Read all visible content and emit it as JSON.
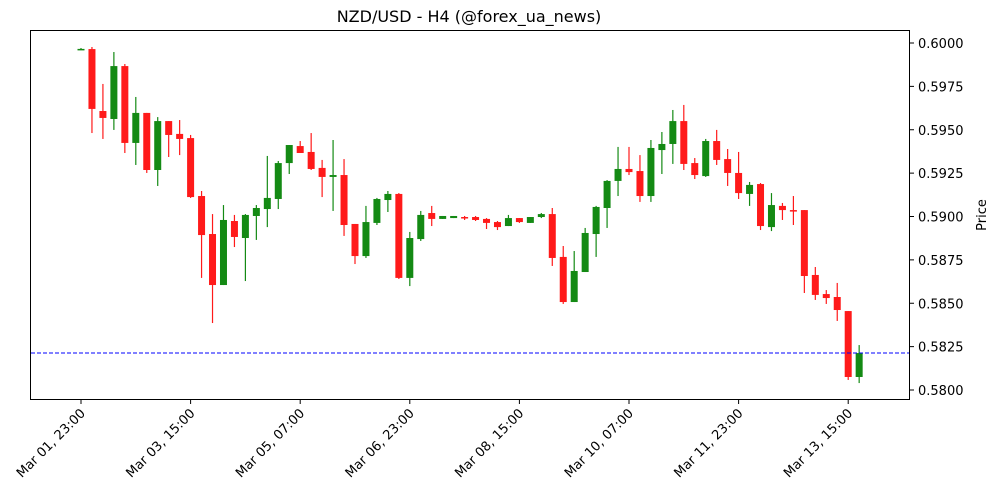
{
  "chart_data": {
    "type": "candlestick",
    "title": "NZD/USD - H4 (@forex_ua_news)",
    "xlabel": "",
    "ylabel": "Price",
    "ylim": [
      0.57937,
      0.60069
    ],
    "y_ticks": [
      "0.6000",
      "0.5975",
      "0.5950",
      "0.5925",
      "0.5900",
      "0.5875",
      "0.5850",
      "0.5825",
      "0.5800"
    ],
    "y_tick_values": [
      0.6,
      0.5975,
      0.595,
      0.5925,
      0.59,
      0.5875,
      0.585,
      0.5825,
      0.58
    ],
    "x_ticks": [
      "Mar 01, 23:00",
      "Mar 03, 15:00",
      "Mar 05, 07:00",
      "Mar 06, 23:00",
      "Mar 08, 15:00",
      "Mar 10, 07:00",
      "Mar 11, 23:00",
      "Mar 13, 15:00"
    ],
    "x_tick_indices": [
      0,
      10,
      20,
      30,
      40,
      50,
      60,
      70
    ],
    "grid": false,
    "reference_line": {
      "value": 0.58213,
      "color": "#0000ff",
      "style": "dashed"
    },
    "colors": {
      "up": "#148a14",
      "down": "#ff1a1a"
    },
    "candles": [
      {
        "o": 0.59965,
        "h": 0.59971,
        "l": 0.59965,
        "c": 0.59966
      },
      {
        "o": 0.59965,
        "h": 0.59977,
        "l": 0.59481,
        "c": 0.5962
      },
      {
        "o": 0.59608,
        "h": 0.59764,
        "l": 0.59447,
        "c": 0.59568
      },
      {
        "o": 0.59562,
        "h": 0.59948,
        "l": 0.59499,
        "c": 0.59867
      },
      {
        "o": 0.59867,
        "h": 0.59879,
        "l": 0.59366,
        "c": 0.59424
      },
      {
        "o": 0.59424,
        "h": 0.59689,
        "l": 0.59297,
        "c": 0.59597
      },
      {
        "o": 0.59597,
        "h": 0.59597,
        "l": 0.59251,
        "c": 0.59268
      },
      {
        "o": 0.59268,
        "h": 0.59573,
        "l": 0.59176,
        "c": 0.5955
      },
      {
        "o": 0.5955,
        "h": 0.5955,
        "l": 0.59343,
        "c": 0.5947
      },
      {
        "o": 0.59476,
        "h": 0.59556,
        "l": 0.59354,
        "c": 0.59447
      },
      {
        "o": 0.59452,
        "h": 0.5947,
        "l": 0.59107,
        "c": 0.59112
      },
      {
        "o": 0.59118,
        "h": 0.59147,
        "l": 0.58646,
        "c": 0.58893
      },
      {
        "o": 0.58899,
        "h": 0.59014,
        "l": 0.58386,
        "c": 0.58605
      },
      {
        "o": 0.58605,
        "h": 0.59066,
        "l": 0.58605,
        "c": 0.5898
      },
      {
        "o": 0.58974,
        "h": 0.59009,
        "l": 0.58824,
        "c": 0.58882
      },
      {
        "o": 0.58876,
        "h": 0.59014,
        "l": 0.58628,
        "c": 0.59009
      },
      {
        "o": 0.59003,
        "h": 0.59066,
        "l": 0.58865,
        "c": 0.59049
      },
      {
        "o": 0.59043,
        "h": 0.59349,
        "l": 0.58939,
        "c": 0.59107
      },
      {
        "o": 0.59101,
        "h": 0.5932,
        "l": 0.59043,
        "c": 0.59308
      },
      {
        "o": 0.59308,
        "h": 0.59412,
        "l": 0.59245,
        "c": 0.59412
      },
      {
        "o": 0.59406,
        "h": 0.59435,
        "l": 0.59366,
        "c": 0.59366
      },
      {
        "o": 0.59372,
        "h": 0.59481,
        "l": 0.59268,
        "c": 0.59274
      },
      {
        "o": 0.5928,
        "h": 0.59326,
        "l": 0.59112,
        "c": 0.59228
      },
      {
        "o": 0.59228,
        "h": 0.59441,
        "l": 0.59032,
        "c": 0.59239
      },
      {
        "o": 0.59239,
        "h": 0.59331,
        "l": 0.58888,
        "c": 0.58951
      },
      {
        "o": 0.58957,
        "h": 0.58957,
        "l": 0.58726,
        "c": 0.58772
      },
      {
        "o": 0.58772,
        "h": 0.59061,
        "l": 0.58761,
        "c": 0.58968
      },
      {
        "o": 0.58963,
        "h": 0.59107,
        "l": 0.58951,
        "c": 0.59101
      },
      {
        "o": 0.59095,
        "h": 0.59147,
        "l": 0.59026,
        "c": 0.5913
      },
      {
        "o": 0.5913,
        "h": 0.59135,
        "l": 0.5864,
        "c": 0.58646
      },
      {
        "o": 0.58646,
        "h": 0.58911,
        "l": 0.58599,
        "c": 0.58876
      },
      {
        "o": 0.5887,
        "h": 0.59032,
        "l": 0.58859,
        "c": 0.59009
      },
      {
        "o": 0.5902,
        "h": 0.59061,
        "l": 0.58945,
        "c": 0.58986
      },
      {
        "o": 0.58986,
        "h": 0.59003,
        "l": 0.58986,
        "c": 0.59003
      },
      {
        "o": 0.58991,
        "h": 0.59003,
        "l": 0.58991,
        "c": 0.59003
      },
      {
        "o": 0.58997,
        "h": 0.59003,
        "l": 0.5898,
        "c": 0.58991
      },
      {
        "o": 0.58997,
        "h": 0.59003,
        "l": 0.58974,
        "c": 0.5898
      },
      {
        "o": 0.58986,
        "h": 0.58991,
        "l": 0.58928,
        "c": 0.58963
      },
      {
        "o": 0.58968,
        "h": 0.58974,
        "l": 0.58922,
        "c": 0.58939
      },
      {
        "o": 0.58945,
        "h": 0.59009,
        "l": 0.58945,
        "c": 0.58991
      },
      {
        "o": 0.58991,
        "h": 0.58991,
        "l": 0.58963,
        "c": 0.58968
      },
      {
        "o": 0.58963,
        "h": 0.58997,
        "l": 0.58963,
        "c": 0.58997
      },
      {
        "o": 0.58997,
        "h": 0.5902,
        "l": 0.58991,
        "c": 0.59014
      },
      {
        "o": 0.59014,
        "h": 0.59049,
        "l": 0.58715,
        "c": 0.58761
      },
      {
        "o": 0.58767,
        "h": 0.5883,
        "l": 0.58496,
        "c": 0.58507
      },
      {
        "o": 0.58507,
        "h": 0.58801,
        "l": 0.58507,
        "c": 0.58686
      },
      {
        "o": 0.5868,
        "h": 0.58934,
        "l": 0.5868,
        "c": 0.58905
      },
      {
        "o": 0.58899,
        "h": 0.59061,
        "l": 0.58767,
        "c": 0.59055
      },
      {
        "o": 0.59049,
        "h": 0.5921,
        "l": 0.58934,
        "c": 0.59205
      },
      {
        "o": 0.59205,
        "h": 0.59401,
        "l": 0.59118,
        "c": 0.59274
      },
      {
        "o": 0.59274,
        "h": 0.59401,
        "l": 0.59239,
        "c": 0.59256
      },
      {
        "o": 0.59262,
        "h": 0.59354,
        "l": 0.59084,
        "c": 0.59118
      },
      {
        "o": 0.59118,
        "h": 0.59441,
        "l": 0.59084,
        "c": 0.59395
      },
      {
        "o": 0.59383,
        "h": 0.59487,
        "l": 0.59245,
        "c": 0.59418
      },
      {
        "o": 0.59418,
        "h": 0.59614,
        "l": 0.59303,
        "c": 0.5955
      },
      {
        "o": 0.5955,
        "h": 0.59643,
        "l": 0.59268,
        "c": 0.59303
      },
      {
        "o": 0.59308,
        "h": 0.59337,
        "l": 0.59216,
        "c": 0.59239
      },
      {
        "o": 0.59233,
        "h": 0.59447,
        "l": 0.59228,
        "c": 0.59435
      },
      {
        "o": 0.59435,
        "h": 0.59499,
        "l": 0.59297,
        "c": 0.59326
      },
      {
        "o": 0.59331,
        "h": 0.59389,
        "l": 0.59176,
        "c": 0.59251
      },
      {
        "o": 0.59251,
        "h": 0.59372,
        "l": 0.59101,
        "c": 0.59135
      },
      {
        "o": 0.5913,
        "h": 0.59199,
        "l": 0.59061,
        "c": 0.59182
      },
      {
        "o": 0.59187,
        "h": 0.59193,
        "l": 0.58922,
        "c": 0.58945
      },
      {
        "o": 0.58939,
        "h": 0.59135,
        "l": 0.58916,
        "c": 0.59066
      },
      {
        "o": 0.59061,
        "h": 0.59078,
        "l": 0.5898,
        "c": 0.59037
      },
      {
        "o": 0.59037,
        "h": 0.59118,
        "l": 0.58951,
        "c": 0.59032
      },
      {
        "o": 0.59037,
        "h": 0.59037,
        "l": 0.58559,
        "c": 0.58657
      },
      {
        "o": 0.58663,
        "h": 0.58709,
        "l": 0.58519,
        "c": 0.58548
      },
      {
        "o": 0.58553,
        "h": 0.58576,
        "l": 0.58496,
        "c": 0.5853
      },
      {
        "o": 0.58536,
        "h": 0.58617,
        "l": 0.58398,
        "c": 0.58461
      },
      {
        "o": 0.58455,
        "h": 0.58455,
        "l": 0.58058,
        "c": 0.58075
      },
      {
        "o": 0.58075,
        "h": 0.58259,
        "l": 0.5804,
        "c": 0.58213
      }
    ]
  }
}
